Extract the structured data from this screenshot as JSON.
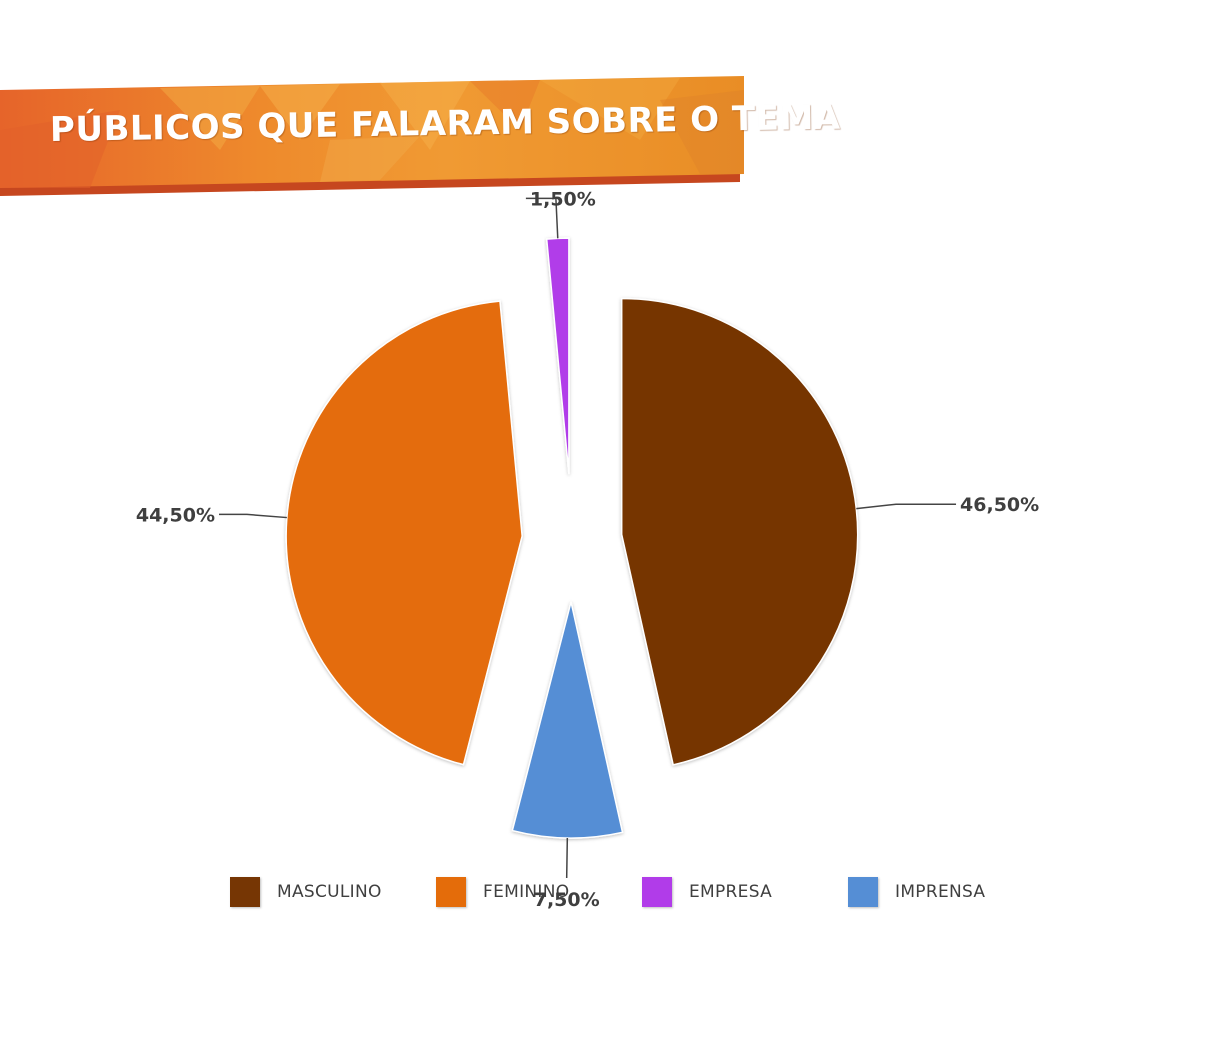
{
  "header": {
    "title": "PÚBLICOS QUE FALARAM SOBRE O TEMA",
    "colors": {
      "orange": "#e8742a",
      "orange_light": "#f0a23a",
      "shadow_strip": "#c94e22"
    }
  },
  "chart_data": {
    "type": "pie",
    "title": "PÚBLICOS QUE FALARAM SOBRE O TEMA",
    "exploded": true,
    "legend_position": "bottom",
    "start": "12 o'clock, clockwise",
    "slices": [
      {
        "name": "MASCULINO",
        "value": 46.5,
        "label": "46,50%",
        "color": "#763604"
      },
      {
        "name": "IMPRENSA",
        "value": 7.5,
        "label": "7,50%",
        "color": "#558ed5"
      },
      {
        "name": "FEMININO",
        "value": 44.5,
        "label": "44,50%",
        "color": "#e46c0a"
      },
      {
        "name": "EMPRESA",
        "value": 1.5,
        "label": "1,50%",
        "color": "#b13ce9"
      }
    ]
  },
  "legend": {
    "items": [
      {
        "label": "MASCULINO",
        "color": "#763604"
      },
      {
        "label": "FEMININO",
        "color": "#e46c0a"
      },
      {
        "label": "EMPRESA",
        "color": "#b13ce9"
      },
      {
        "label": "IMPRENSA",
        "color": "#558ed5"
      }
    ]
  }
}
